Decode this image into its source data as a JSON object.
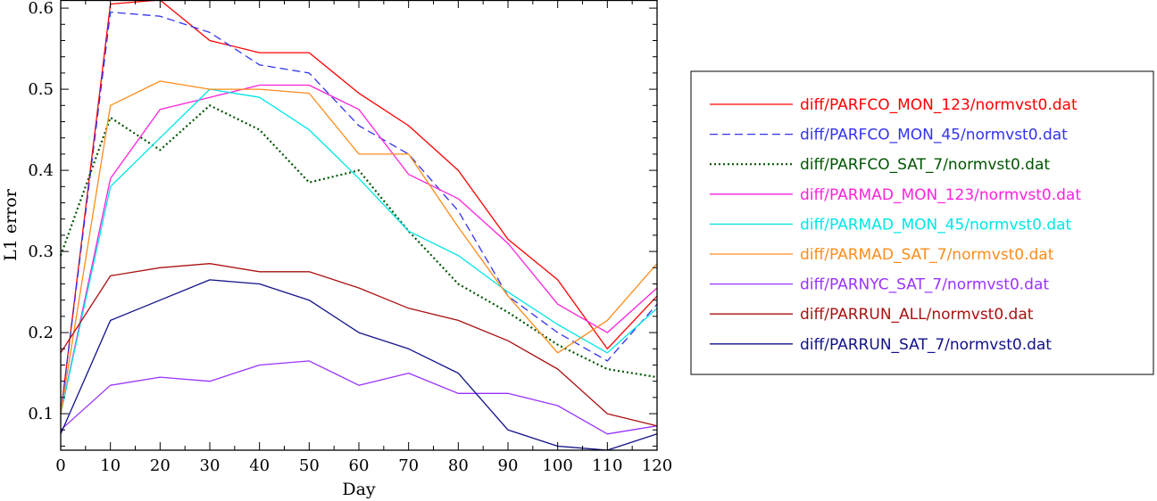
{
  "chart_data": {
    "type": "line",
    "xlabel": "Day",
    "ylabel": "L1 error",
    "xlim": [
      0,
      120
    ],
    "ylim": [
      0.055,
      0.61
    ],
    "xticks": [
      0,
      10,
      20,
      30,
      40,
      50,
      60,
      70,
      80,
      90,
      100,
      110,
      120
    ],
    "xtick_labels": [
      "0",
      "10",
      "20",
      "30",
      "40",
      "50",
      "60",
      "70",
      "80",
      "90",
      "100",
      "110",
      "120"
    ],
    "yticks": [
      0.1,
      0.2,
      0.3,
      0.4,
      0.5,
      0.6
    ],
    "ytick_labels": [
      "0.1",
      "0.2",
      "0.3",
      "0.4",
      "0.5",
      "0.6"
    ],
    "grid": false,
    "legend_position": "right-outside",
    "x": [
      0,
      10,
      20,
      30,
      40,
      50,
      60,
      70,
      80,
      90,
      100,
      110,
      120
    ],
    "series": [
      {
        "name": "diff/PARFCO_MON_123/normvst0.dat",
        "color": "#ff0000",
        "dash": "solid",
        "values": [
          0.1,
          0.605,
          0.61,
          0.56,
          0.545,
          0.545,
          0.495,
          0.455,
          0.4,
          0.315,
          0.265,
          0.18,
          0.245
        ]
      },
      {
        "name": "diff/PARFCO_MON_45/normvst0.dat",
        "color": "#3333ee",
        "dash": "dashed",
        "values": [
          0.1,
          0.595,
          0.59,
          0.57,
          0.53,
          0.52,
          0.455,
          0.42,
          0.35,
          0.245,
          0.2,
          0.165,
          0.235
        ]
      },
      {
        "name": "diff/PARFCO_SAT_7/normvst0.dat",
        "color": "#005500",
        "dash": "dotted",
        "values": [
          0.295,
          0.465,
          0.425,
          0.48,
          0.45,
          0.385,
          0.4,
          0.325,
          0.26,
          0.225,
          0.185,
          0.155,
          0.145
        ]
      },
      {
        "name": "diff/PARMAD_MON_123/normvst0.dat",
        "color": "#ff22dd",
        "dash": "solid",
        "values": [
          0.1,
          0.39,
          0.475,
          0.49,
          0.505,
          0.505,
          0.475,
          0.395,
          0.365,
          0.31,
          0.235,
          0.2,
          0.255
        ]
      },
      {
        "name": "diff/PARMAD_MON_45/normvst0.dat",
        "color": "#00e6e6",
        "dash": "solid",
        "values": [
          0.1,
          0.38,
          0.44,
          0.5,
          0.49,
          0.45,
          0.39,
          0.325,
          0.295,
          0.25,
          0.21,
          0.175,
          0.23
        ]
      },
      {
        "name": "diff/PARMAD_SAT_7/normvst0.dat",
        "color": "#ff8c1a",
        "dash": "solid",
        "values": [
          0.1,
          0.48,
          0.51,
          0.5,
          0.5,
          0.495,
          0.42,
          0.42,
          0.33,
          0.245,
          0.175,
          0.215,
          0.285
        ]
      },
      {
        "name": "diff/PARNYC_SAT_7/normvst0.dat",
        "color": "#9933ff",
        "dash": "solid",
        "values": [
          0.08,
          0.135,
          0.145,
          0.14,
          0.16,
          0.165,
          0.135,
          0.15,
          0.125,
          0.125,
          0.11,
          0.075,
          0.085
        ]
      },
      {
        "name": "diff/PARRUN_ALL/normvst0.dat",
        "color": "#aa1111",
        "dash": "solid",
        "values": [
          0.175,
          0.27,
          0.28,
          0.285,
          0.275,
          0.275,
          0.255,
          0.23,
          0.215,
          0.19,
          0.155,
          0.1,
          0.085
        ]
      },
      {
        "name": "diff/PARRUN_SAT_7/normvst0.dat",
        "color": "#111188",
        "dash": "solid",
        "values": [
          0.075,
          0.215,
          0.24,
          0.265,
          0.26,
          0.24,
          0.2,
          0.18,
          0.15,
          0.08,
          0.06,
          0.055,
          0.075
        ]
      }
    ]
  }
}
